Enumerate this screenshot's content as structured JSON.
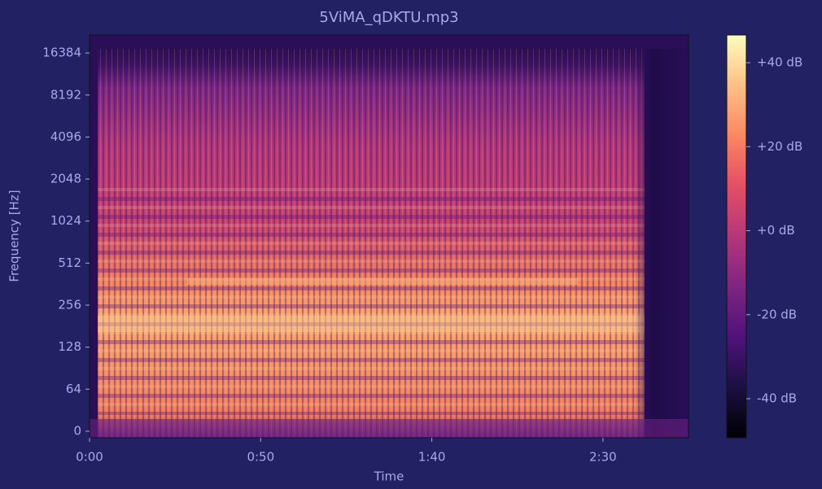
{
  "chart_data": {
    "type": "spectrogram",
    "title": "5ViMA_qDKTU.mp3",
    "xlabel": "Time",
    "ylabel": "Frequency [Hz]",
    "xlim": [
      0,
      175
    ],
    "xticks": [
      {
        "value": 0,
        "label": "0:00"
      },
      {
        "value": 50,
        "label": "0:50"
      },
      {
        "value": 100,
        "label": "1:40"
      },
      {
        "value": 150,
        "label": "2:30"
      }
    ],
    "ylim": [
      -10,
      22050
    ],
    "yscale": "symlog",
    "linthresh": 64,
    "yticks": [
      0,
      64,
      128,
      256,
      512,
      1024,
      2048,
      4096,
      8192,
      16384
    ],
    "colorbar": {
      "lim": [
        -49.3,
        46.6
      ],
      "ticks": [
        {
          "value": -40,
          "label": "-40 dB"
        },
        {
          "value": -20,
          "label": "-20 dB"
        },
        {
          "value": 0,
          "label": "+0 dB"
        },
        {
          "value": 20,
          "label": "+20 dB"
        },
        {
          "value": 40,
          "label": "+40 dB"
        }
      ]
    }
  }
}
